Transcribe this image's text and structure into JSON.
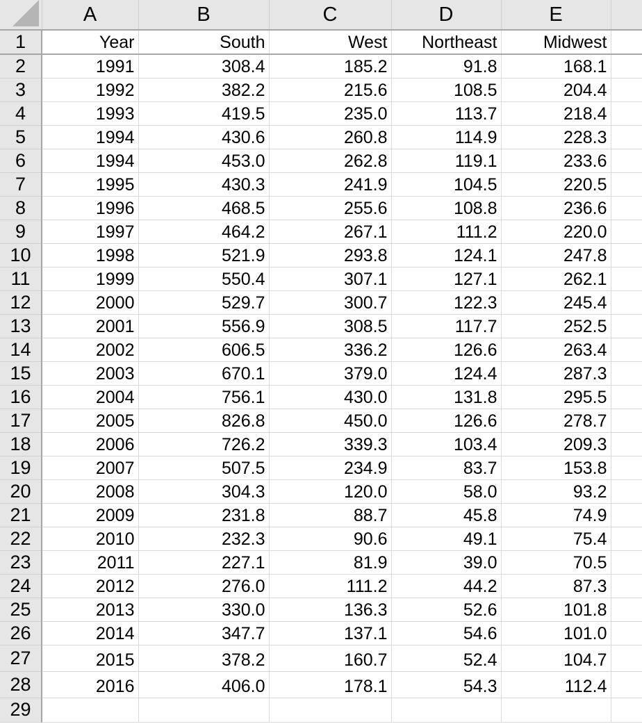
{
  "columns": [
    "A",
    "B",
    "C",
    "D",
    "E",
    ""
  ],
  "header_row": {
    "row_number": "1",
    "cells": [
      "Year",
      "South",
      "West",
      "Northeast",
      "Midwest",
      ""
    ]
  },
  "rows": [
    {
      "n": "2",
      "cells": [
        "1991",
        "308.4",
        "185.2",
        "91.8",
        "168.1"
      ]
    },
    {
      "n": "3",
      "cells": [
        "1992",
        "382.2",
        "215.6",
        "108.5",
        "204.4"
      ]
    },
    {
      "n": "4",
      "cells": [
        "1993",
        "419.5",
        "235.0",
        "113.7",
        "218.4"
      ]
    },
    {
      "n": "5",
      "cells": [
        "1994",
        "430.6",
        "260.8",
        "114.9",
        "228.3"
      ]
    },
    {
      "n": "6",
      "cells": [
        "1994",
        "453.0",
        "262.8",
        "119.1",
        "233.6"
      ]
    },
    {
      "n": "7",
      "cells": [
        "1995",
        "430.3",
        "241.9",
        "104.5",
        "220.5"
      ]
    },
    {
      "n": "8",
      "cells": [
        "1996",
        "468.5",
        "255.6",
        "108.8",
        "236.6"
      ]
    },
    {
      "n": "9",
      "cells": [
        "1997",
        "464.2",
        "267.1",
        "111.2",
        "220.0"
      ]
    },
    {
      "n": "10",
      "cells": [
        "1998",
        "521.9",
        "293.8",
        "124.1",
        "247.8"
      ]
    },
    {
      "n": "11",
      "cells": [
        "1999",
        "550.4",
        "307.1",
        "127.1",
        "262.1"
      ]
    },
    {
      "n": "12",
      "cells": [
        "2000",
        "529.7",
        "300.7",
        "122.3",
        "245.4"
      ]
    },
    {
      "n": "13",
      "cells": [
        "2001",
        "556.9",
        "308.5",
        "117.7",
        "252.5"
      ]
    },
    {
      "n": "14",
      "cells": [
        "2002",
        "606.5",
        "336.2",
        "126.6",
        "263.4"
      ]
    },
    {
      "n": "15",
      "cells": [
        "2003",
        "670.1",
        "379.0",
        "124.4",
        "287.3"
      ]
    },
    {
      "n": "16",
      "cells": [
        "2004",
        "756.1",
        "430.0",
        "131.8",
        "295.5"
      ]
    },
    {
      "n": "17",
      "cells": [
        "2005",
        "826.8",
        "450.0",
        "126.6",
        "278.7"
      ]
    },
    {
      "n": "18",
      "cells": [
        "2006",
        "726.2",
        "339.3",
        "103.4",
        "209.3"
      ]
    },
    {
      "n": "19",
      "cells": [
        "2007",
        "507.5",
        "234.9",
        "83.7",
        "153.8"
      ]
    },
    {
      "n": "20",
      "cells": [
        "2008",
        "304.3",
        "120.0",
        "58.0",
        "93.2"
      ]
    },
    {
      "n": "21",
      "cells": [
        "2009",
        "231.8",
        "88.7",
        "45.8",
        "74.9"
      ]
    },
    {
      "n": "22",
      "cells": [
        "2010",
        "232.3",
        "90.6",
        "49.1",
        "75.4"
      ]
    },
    {
      "n": "23",
      "cells": [
        "2011",
        "227.1",
        "81.9",
        "39.0",
        "70.5"
      ]
    },
    {
      "n": "24",
      "cells": [
        "2012",
        "276.0",
        "111.2",
        "44.2",
        "87.3"
      ]
    },
    {
      "n": "25",
      "cells": [
        "2013",
        "330.0",
        "136.3",
        "52.6",
        "101.8"
      ]
    },
    {
      "n": "26",
      "cells": [
        "2014",
        "347.7",
        "137.1",
        "54.6",
        "101.0"
      ]
    },
    {
      "n": "27",
      "cells": [
        "2015",
        "378.2",
        "160.7",
        "52.4",
        "104.7"
      ]
    },
    {
      "n": "28",
      "cells": [
        "2016",
        "406.0",
        "178.1",
        "54.3",
        "112.4"
      ]
    },
    {
      "n": "29",
      "cells": [
        "",
        "",
        "",
        "",
        ""
      ]
    }
  ]
}
